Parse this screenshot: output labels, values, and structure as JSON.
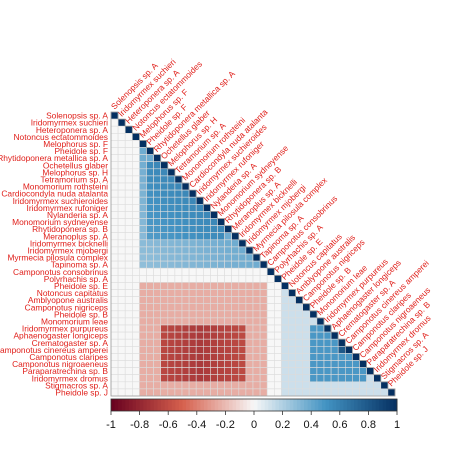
{
  "chart_data": {
    "type": "heatmap",
    "title": "",
    "species": [
      "Solenopsis sp. A",
      "Iridomyrmex suchieri",
      "Heteroponera sp. A",
      "Notoncus ectatommoides",
      "Melophorus sp. F",
      "Pheidole sp. F",
      "Rhytidoponera metallica sp. A",
      "Ochetellus glaber",
      "Melophorus sp. H",
      "Tetramorium sp. A",
      "Monomorium rothsteini",
      "Cardiocondyla nuda atalanta",
      "Iridomyrmex suchieroides",
      "Iridomyrmex rufoniger",
      "Nylanderia sp. A",
      "Monomorium sydneyense",
      "Rhytidoponera sp. B",
      "Meranoplus sp. A",
      "Iridomyrmex bicknelli",
      "Iridomyrmex mjobergi",
      "Myrmecia pilosula complex",
      "Tapinoma sp. A",
      "Camponotus consobrinus",
      "Polyrhachis sp. A",
      "Pheidole sp. E",
      "Notoncus capitatus",
      "Amblyopone australis",
      "Camponotus nigriceps",
      "Pheidole sp. B",
      "Monomorium leae",
      "Iridomyrmex purpureus",
      "Aphaenogaster longiceps",
      "Crematogaster sp. A",
      "Camponotus cinereus amperei",
      "Camponotus claripes",
      "Camponotus nigroaeneus",
      "Paraparatrechina sp. B",
      "Iridomyrmex dromus",
      "Stigmacros sp. A",
      "Pheidole sp. J"
    ],
    "groups": {
      "block_a": [
        4,
        21
      ],
      "block_b": [
        24,
        39
      ],
      "neutral_rows": [
        22,
        23
      ]
    },
    "correlation_pattern": {
      "within_block_a": 0.45,
      "within_block_b": 0.3,
      "strong_pair_block_b": 0.8,
      "cross_block_core": -0.7,
      "cross_block_edge": -0.35
    },
    "colorbar": {
      "ticks": [
        -1,
        -0.8,
        -0.6,
        -0.4,
        -0.2,
        0,
        0.2,
        0.4,
        0.6,
        0.8,
        1
      ],
      "tick_labels": [
        "-1",
        "-0.8",
        "-0.6",
        "-0.4",
        "-0.2",
        "0",
        "0.2",
        "0.4",
        "0.6",
        "0.8",
        "1"
      ],
      "range": [
        -1,
        1
      ],
      "colors": {
        "negative_end": "#67001f",
        "negative_mid": "#d6604d",
        "zero": "#f7f7f7",
        "positive_mid": "#4393c3",
        "positive_end": "#053061"
      }
    },
    "label_color": "#e0201b",
    "layout": "lower-triangle",
    "legend_position": "bottom"
  }
}
